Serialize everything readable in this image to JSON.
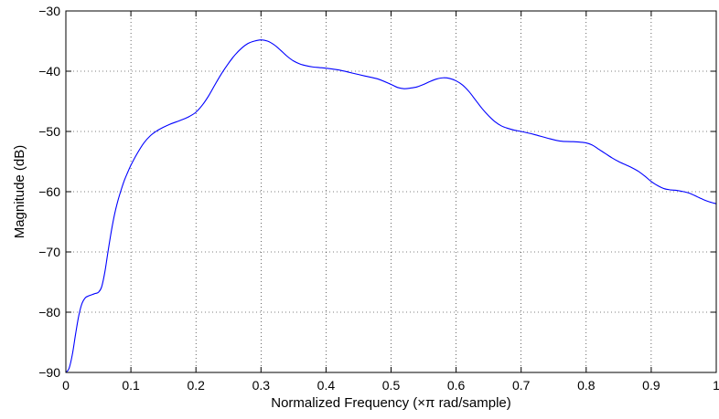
{
  "chart_data": {
    "type": "line",
    "title": "",
    "xlabel": "Normalized Frequency  (×π rad/sample)",
    "ylabel": "Magnitude (dB)",
    "xlim": [
      0,
      1
    ],
    "ylim": [
      -90,
      -30
    ],
    "grid": true,
    "grid_style": "dotted",
    "legend": "none",
    "x_ticks": [
      0,
      0.1,
      0.2,
      0.3,
      0.4,
      0.5,
      0.6,
      0.7,
      0.8,
      0.9,
      1
    ],
    "x_tick_labels": [
      "0",
      "0.1",
      "0.2",
      "0.3",
      "0.4",
      "0.5",
      "0.6",
      "0.7",
      "0.8",
      "0.9",
      "1"
    ],
    "y_ticks": [
      -90,
      -80,
      -70,
      -60,
      -50,
      -40,
      -30
    ],
    "y_tick_labels": [
      "−90",
      "−80",
      "−70",
      "−60",
      "−50",
      "−40",
      "−30"
    ],
    "series": [
      {
        "color": "#0000ff",
        "x": [
          0,
          0.005,
          0.01,
          0.015,
          0.02,
          0.025,
          0.03,
          0.035,
          0.04,
          0.045,
          0.05,
          0.055,
          0.06,
          0.065,
          0.07,
          0.075,
          0.08,
          0.085,
          0.09,
          0.095,
          0.1,
          0.11,
          0.12,
          0.13,
          0.14,
          0.15,
          0.16,
          0.17,
          0.18,
          0.19,
          0.2,
          0.21,
          0.22,
          0.23,
          0.24,
          0.25,
          0.26,
          0.27,
          0.28,
          0.29,
          0.3,
          0.31,
          0.32,
          0.33,
          0.34,
          0.35,
          0.36,
          0.37,
          0.38,
          0.39,
          0.4,
          0.42,
          0.44,
          0.46,
          0.48,
          0.5,
          0.51,
          0.52,
          0.53,
          0.54,
          0.55,
          0.56,
          0.57,
          0.58,
          0.59,
          0.6,
          0.61,
          0.62,
          0.63,
          0.64,
          0.65,
          0.66,
          0.67,
          0.68,
          0.69,
          0.7,
          0.72,
          0.74,
          0.76,
          0.78,
          0.8,
          0.81,
          0.82,
          0.83,
          0.84,
          0.85,
          0.86,
          0.87,
          0.88,
          0.89,
          0.9,
          0.91,
          0.92,
          0.93,
          0.94,
          0.95,
          0.96,
          0.97,
          0.98,
          0.99,
          1.0
        ],
        "y": [
          -90,
          -89.3,
          -87,
          -83.6,
          -80.5,
          -78.5,
          -77.6,
          -77.3,
          -77.1,
          -76.9,
          -76.7,
          -75.8,
          -73.3,
          -69.8,
          -66.5,
          -63.7,
          -61.5,
          -59.7,
          -58.1,
          -56.8,
          -55.6,
          -53.6,
          -51.9,
          -50.7,
          -49.9,
          -49.3,
          -48.8,
          -48.4,
          -48,
          -47.5,
          -46.8,
          -45.6,
          -44,
          -42.1,
          -40.3,
          -38.7,
          -37.3,
          -36.2,
          -35.4,
          -35,
          -34.8,
          -35,
          -35.6,
          -36.5,
          -37.5,
          -38.3,
          -38.8,
          -39.1,
          -39.3,
          -39.4,
          -39.5,
          -39.8,
          -40.3,
          -40.8,
          -41.3,
          -42.2,
          -42.7,
          -42.9,
          -42.8,
          -42.6,
          -42.2,
          -41.7,
          -41.3,
          -41.1,
          -41.2,
          -41.6,
          -42.3,
          -43.4,
          -44.8,
          -46.2,
          -47.4,
          -48.4,
          -49.1,
          -49.5,
          -49.8,
          -50,
          -50.5,
          -51.1,
          -51.6,
          -51.7,
          -51.9,
          -52.3,
          -53,
          -53.7,
          -54.4,
          -55,
          -55.5,
          -56,
          -56.6,
          -57.4,
          -58.3,
          -59,
          -59.5,
          -59.7,
          -59.8,
          -60,
          -60.3,
          -60.8,
          -61.3,
          -61.7,
          -62
        ]
      }
    ]
  }
}
